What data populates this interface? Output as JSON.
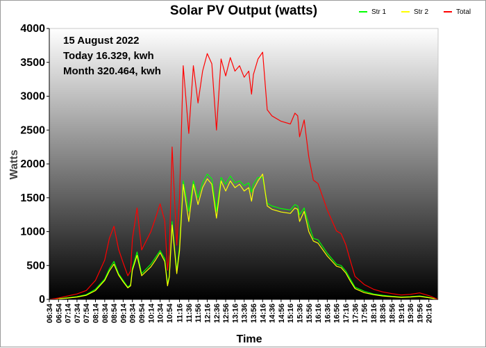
{
  "chart_data": {
    "type": "line",
    "title": "Solar PV Output (watts)",
    "xlabel": "Time",
    "ylabel": "Watts",
    "ylim": [
      0,
      4000
    ],
    "yticks": [
      "0",
      "500",
      "1000",
      "1500",
      "2000",
      "2500",
      "3000",
      "3500",
      "4000"
    ],
    "xlim": [
      "06:34",
      "20:36"
    ],
    "xticks": [
      "06:34",
      "06:54",
      "07:14",
      "07:34",
      "07:54",
      "08:14",
      "08:34",
      "08:54",
      "09:14",
      "09:34",
      "09:54",
      "10:14",
      "10:34",
      "10:54",
      "11:16",
      "11:36",
      "11:56",
      "12:16",
      "12:36",
      "12:56",
      "13:16",
      "13:36",
      "13:56",
      "14:16",
      "14:36",
      "14:56",
      "15:16",
      "15:36",
      "15:56",
      "16:16",
      "16:36",
      "16:56",
      "17:16",
      "17:36",
      "17:56",
      "18:16",
      "18:36",
      "18:56",
      "19:16",
      "19:36",
      "19:56",
      "20:16"
    ],
    "legend_position": "top-right",
    "grid": false,
    "annotations": [
      "15 August 2022",
      "Today 16.329, kwh",
      "Month 320.464, kwh"
    ],
    "series": [
      {
        "name": "Str 1",
        "color": "#00ff00",
        "points": [
          [
            "06:34",
            0
          ],
          [
            "06:54",
            10
          ],
          [
            "07:14",
            25
          ],
          [
            "07:34",
            40
          ],
          [
            "07:54",
            70
          ],
          [
            "08:14",
            150
          ],
          [
            "08:34",
            300
          ],
          [
            "08:44",
            450
          ],
          [
            "08:54",
            560
          ],
          [
            "09:04",
            380
          ],
          [
            "09:14",
            280
          ],
          [
            "09:24",
            180
          ],
          [
            "09:30",
            220
          ],
          [
            "09:34",
            460
          ],
          [
            "09:44",
            700
          ],
          [
            "09:54",
            380
          ],
          [
            "10:14",
            520
          ],
          [
            "10:24",
            620
          ],
          [
            "10:34",
            720
          ],
          [
            "10:44",
            600
          ],
          [
            "10:50",
            230
          ],
          [
            "10:54",
            350
          ],
          [
            "11:00",
            1150
          ],
          [
            "11:10",
            420
          ],
          [
            "11:16",
            780
          ],
          [
            "11:24",
            1750
          ],
          [
            "11:36",
            1300
          ],
          [
            "11:46",
            1750
          ],
          [
            "11:56",
            1500
          ],
          [
            "12:06",
            1720
          ],
          [
            "12:16",
            1850
          ],
          [
            "12:26",
            1780
          ],
          [
            "12:36",
            1300
          ],
          [
            "12:46",
            1800
          ],
          [
            "12:56",
            1700
          ],
          [
            "13:06",
            1820
          ],
          [
            "13:16",
            1720
          ],
          [
            "13:26",
            1750
          ],
          [
            "13:36",
            1680
          ],
          [
            "13:46",
            1720
          ],
          [
            "13:52",
            1580
          ],
          [
            "13:56",
            1700
          ],
          [
            "14:06",
            1800
          ],
          [
            "14:16",
            1800
          ],
          [
            "14:26",
            1420
          ],
          [
            "14:36",
            1380
          ],
          [
            "14:56",
            1340
          ],
          [
            "15:16",
            1320
          ],
          [
            "15:26",
            1400
          ],
          [
            "15:32",
            1380
          ],
          [
            "15:36",
            1250
          ],
          [
            "15:46",
            1350
          ],
          [
            "15:56",
            1100
          ],
          [
            "16:06",
            900
          ],
          [
            "16:16",
            880
          ],
          [
            "16:36",
            680
          ],
          [
            "16:56",
            520
          ],
          [
            "17:06",
            500
          ],
          [
            "17:16",
            420
          ],
          [
            "17:26",
            300
          ],
          [
            "17:36",
            180
          ],
          [
            "17:56",
            120
          ],
          [
            "18:16",
            80
          ],
          [
            "18:36",
            60
          ],
          [
            "18:56",
            45
          ],
          [
            "19:16",
            35
          ],
          [
            "19:36",
            40
          ],
          [
            "19:56",
            50
          ],
          [
            "20:16",
            30
          ],
          [
            "20:36",
            0
          ]
        ]
      },
      {
        "name": "Str 2",
        "color": "#ffff00",
        "points": [
          [
            "06:34",
            0
          ],
          [
            "06:54",
            8
          ],
          [
            "07:14",
            20
          ],
          [
            "07:34",
            35
          ],
          [
            "07:54",
            60
          ],
          [
            "08:14",
            130
          ],
          [
            "08:34",
            280
          ],
          [
            "08:44",
            420
          ],
          [
            "08:54",
            520
          ],
          [
            "09:04",
            360
          ],
          [
            "09:14",
            260
          ],
          [
            "09:24",
            170
          ],
          [
            "09:30",
            200
          ],
          [
            "09:34",
            430
          ],
          [
            "09:44",
            650
          ],
          [
            "09:54",
            350
          ],
          [
            "10:14",
            480
          ],
          [
            "10:24",
            580
          ],
          [
            "10:34",
            690
          ],
          [
            "10:44",
            560
          ],
          [
            "10:50",
            200
          ],
          [
            "10:54",
            330
          ],
          [
            "11:00",
            1100
          ],
          [
            "11:10",
            380
          ],
          [
            "11:16",
            720
          ],
          [
            "11:24",
            1700
          ],
          [
            "11:36",
            1150
          ],
          [
            "11:46",
            1700
          ],
          [
            "11:56",
            1400
          ],
          [
            "12:06",
            1650
          ],
          [
            "12:16",
            1780
          ],
          [
            "12:26",
            1700
          ],
          [
            "12:36",
            1200
          ],
          [
            "12:46",
            1750
          ],
          [
            "12:56",
            1600
          ],
          [
            "13:06",
            1750
          ],
          [
            "13:16",
            1650
          ],
          [
            "13:26",
            1700
          ],
          [
            "13:36",
            1600
          ],
          [
            "13:46",
            1650
          ],
          [
            "13:52",
            1450
          ],
          [
            "13:56",
            1620
          ],
          [
            "14:06",
            1750
          ],
          [
            "14:16",
            1850
          ],
          [
            "14:26",
            1380
          ],
          [
            "14:36",
            1330
          ],
          [
            "14:56",
            1290
          ],
          [
            "15:16",
            1270
          ],
          [
            "15:26",
            1350
          ],
          [
            "15:32",
            1330
          ],
          [
            "15:36",
            1150
          ],
          [
            "15:46",
            1300
          ],
          [
            "15:56",
            1000
          ],
          [
            "16:06",
            860
          ],
          [
            "16:16",
            830
          ],
          [
            "16:36",
            640
          ],
          [
            "16:56",
            490
          ],
          [
            "17:06",
            470
          ],
          [
            "17:16",
            390
          ],
          [
            "17:26",
            270
          ],
          [
            "17:36",
            160
          ],
          [
            "17:56",
            100
          ],
          [
            "18:16",
            70
          ],
          [
            "18:36",
            50
          ],
          [
            "18:56",
            40
          ],
          [
            "19:16",
            30
          ],
          [
            "19:36",
            35
          ],
          [
            "19:56",
            45
          ],
          [
            "20:16",
            25
          ],
          [
            "20:36",
            0
          ]
        ]
      },
      {
        "name": "Total",
        "color": "#ff0000",
        "points": [
          [
            "06:34",
            0
          ],
          [
            "06:54",
            20
          ],
          [
            "07:14",
            50
          ],
          [
            "07:34",
            80
          ],
          [
            "07:54",
            130
          ],
          [
            "08:14",
            280
          ],
          [
            "08:34",
            580
          ],
          [
            "08:44",
            900
          ],
          [
            "08:54",
            1080
          ],
          [
            "09:04",
            740
          ],
          [
            "09:14",
            540
          ],
          [
            "09:24",
            350
          ],
          [
            "09:30",
            420
          ],
          [
            "09:34",
            890
          ],
          [
            "09:44",
            1350
          ],
          [
            "09:54",
            730
          ],
          [
            "10:14",
            1000
          ],
          [
            "10:24",
            1200
          ],
          [
            "10:34",
            1410
          ],
          [
            "10:44",
            1160
          ],
          [
            "10:50",
            430
          ],
          [
            "10:54",
            680
          ],
          [
            "11:00",
            2250
          ],
          [
            "11:10",
            800
          ],
          [
            "11:16",
            1500
          ],
          [
            "11:24",
            3450
          ],
          [
            "11:36",
            2450
          ],
          [
            "11:46",
            3450
          ],
          [
            "11:56",
            2900
          ],
          [
            "12:06",
            3370
          ],
          [
            "12:16",
            3630
          ],
          [
            "12:26",
            3480
          ],
          [
            "12:36",
            2500
          ],
          [
            "12:46",
            3550
          ],
          [
            "12:56",
            3300
          ],
          [
            "13:06",
            3570
          ],
          [
            "13:16",
            3370
          ],
          [
            "13:26",
            3450
          ],
          [
            "13:36",
            3280
          ],
          [
            "13:46",
            3370
          ],
          [
            "13:52",
            3030
          ],
          [
            "13:56",
            3320
          ],
          [
            "14:06",
            3550
          ],
          [
            "14:16",
            3650
          ],
          [
            "14:26",
            2800
          ],
          [
            "14:36",
            2710
          ],
          [
            "14:56",
            2630
          ],
          [
            "15:16",
            2590
          ],
          [
            "15:26",
            2750
          ],
          [
            "15:32",
            2710
          ],
          [
            "15:36",
            2400
          ],
          [
            "15:46",
            2650
          ],
          [
            "15:56",
            2100
          ],
          [
            "16:06",
            1760
          ],
          [
            "16:16",
            1710
          ],
          [
            "16:36",
            1320
          ],
          [
            "16:56",
            1010
          ],
          [
            "17:06",
            970
          ],
          [
            "17:16",
            810
          ],
          [
            "17:26",
            570
          ],
          [
            "17:36",
            340
          ],
          [
            "17:56",
            220
          ],
          [
            "18:16",
            150
          ],
          [
            "18:36",
            110
          ],
          [
            "18:56",
            85
          ],
          [
            "19:16",
            65
          ],
          [
            "19:36",
            75
          ],
          [
            "19:56",
            95
          ],
          [
            "20:16",
            55
          ],
          [
            "20:36",
            0
          ]
        ]
      }
    ]
  }
}
